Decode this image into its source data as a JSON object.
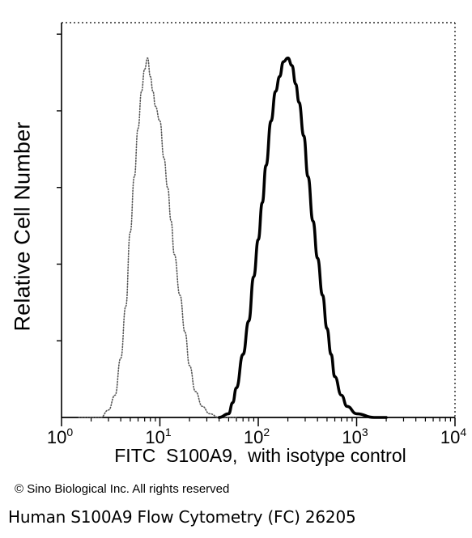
{
  "chart_data": {
    "type": "line",
    "title": "",
    "xlabel": "FITC  S100A9,  with isotype control",
    "ylabel": "Relative Cell Number",
    "x_scale": "log",
    "xlim": [
      1,
      10000
    ],
    "ylim": [
      0,
      100
    ],
    "x_ticks": [
      {
        "value": 1,
        "base": "10",
        "exp": "0"
      },
      {
        "value": 10,
        "base": "10",
        "exp": "1"
      },
      {
        "value": 100,
        "base": "10",
        "exp": "2"
      },
      {
        "value": 1000,
        "base": "10",
        "exp": "3"
      },
      {
        "value": 10000,
        "base": "10",
        "exp": "4"
      }
    ],
    "grid": false,
    "legend": "none",
    "series": [
      {
        "style": "dotted",
        "color": "#555555",
        "x": [
          1.5,
          2.5,
          3.0,
          3.5,
          4.0,
          4.5,
          5.0,
          5.5,
          6.0,
          6.5,
          7.0,
          7.5,
          8.0,
          8.5,
          9.0,
          10.0,
          11.0,
          12.0,
          13.0,
          14.0,
          16.0,
          18.0,
          20.0,
          23.0,
          27.0,
          32.0,
          40.0,
          60.0
        ],
        "y": [
          0,
          0,
          2,
          6,
          16,
          30,
          50,
          65,
          78,
          88,
          94,
          97,
          92,
          88,
          84,
          80,
          70,
          62,
          53,
          44,
          33,
          23,
          14,
          7,
          3,
          1,
          0,
          0
        ]
      },
      {
        "style": "solid",
        "color": "#000000",
        "x": [
          40,
          50,
          55,
          60,
          70,
          80,
          90,
          100,
          110,
          120,
          135,
          150,
          165,
          180,
          200,
          220,
          240,
          260,
          290,
          320,
          360,
          400,
          450,
          500,
          550,
          600,
          700,
          800,
          1000,
          1500,
          2000
        ],
        "y": [
          0,
          1,
          4,
          8,
          17,
          26,
          38,
          48,
          58,
          68,
          80,
          88,
          92,
          96,
          97,
          95,
          90,
          85,
          76,
          65,
          53,
          43,
          33,
          24,
          17,
          11,
          6,
          3,
          1,
          0,
          0
        ]
      }
    ]
  },
  "copyright": "© Sino Biological Inc. All rights reserved",
  "caption": "Human S100A9 Flow Cytometry (FC) 26205"
}
